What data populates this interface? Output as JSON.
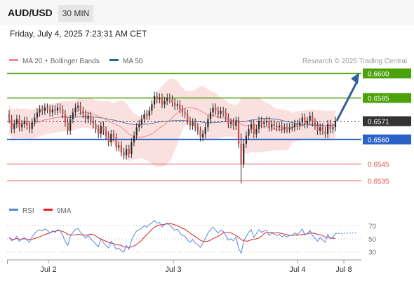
{
  "header": {
    "symbol": "AUD/USD",
    "timeframe": "30 MIN"
  },
  "datetime": "Friday, July 4, 2025 7:23:31 AM CET",
  "legend": {
    "ma20_bb": "MA 20 + Bollinger Bands",
    "ma50": "MA 50",
    "copyright": "Research © 2025 Trading Central",
    "rsi": "RSI",
    "ma9": "9MA"
  },
  "colors": {
    "resistance": "#4aa10a",
    "support_pivot": "#2a62c9",
    "support": "#e05353",
    "current": "#333333",
    "bollinger_fill": "#fbe0e0",
    "ma20": "#f08c8c",
    "ma50": "#2f5f9e",
    "candle": "#2b2b2b",
    "candle_down": "#c94b4b",
    "rsi": "#5b86e0",
    "rsi_ma": "#e02020",
    "arrow": "#2f5f9e"
  },
  "chart_data": {
    "type": "candlestick",
    "y_range": [
      0.6525,
      0.6605
    ],
    "x_ticks": [
      "Jul 2",
      "Jul 3",
      "Jul 4",
      "Jul 8"
    ],
    "levels": [
      {
        "value": 0.66,
        "label": "0.6600",
        "kind": "resistance"
      },
      {
        "value": 0.6585,
        "label": "0.6585",
        "kind": "resistance"
      },
      {
        "value": 0.6571,
        "label": "0.6571",
        "kind": "current"
      },
      {
        "value": 0.656,
        "label": "0.6560",
        "kind": "support_pivot"
      },
      {
        "value": 0.6545,
        "label": "0.6545",
        "kind": "support"
      },
      {
        "value": 0.6535,
        "label": "0.6535",
        "kind": "support"
      }
    ],
    "rsi_ticks": [
      "70",
      "50",
      "30"
    ],
    "rsi_range": [
      20,
      80
    ],
    "closes": [
      0.6572,
      0.6566,
      0.6569,
      0.6572,
      0.6567,
      0.6569,
      0.6571,
      0.6568,
      0.6566,
      0.657,
      0.6573,
      0.6576,
      0.6578,
      0.6577,
      0.6579,
      0.6578,
      0.6576,
      0.6578,
      0.6577,
      0.6579,
      0.6578,
      0.6575,
      0.657,
      0.6565,
      0.6572,
      0.6576,
      0.6579,
      0.658,
      0.6577,
      0.6575,
      0.6572,
      0.6574,
      0.6571,
      0.6569,
      0.6566,
      0.6563,
      0.6568,
      0.6565,
      0.6562,
      0.6558,
      0.6563,
      0.6561,
      0.6555,
      0.6556,
      0.6552,
      0.655,
      0.6554,
      0.6551,
      0.6558,
      0.6562,
      0.6567,
      0.6569,
      0.6572,
      0.6575,
      0.6574,
      0.6577,
      0.6581,
      0.6586,
      0.6584,
      0.6585,
      0.6581,
      0.6583,
      0.6585,
      0.6584,
      0.6582,
      0.658,
      0.6581,
      0.6578,
      0.6576,
      0.6575,
      0.6571,
      0.6568,
      0.657,
      0.6567,
      0.6565,
      0.6561,
      0.6563,
      0.6567,
      0.6572,
      0.6576,
      0.6579,
      0.6577,
      0.6575,
      0.6577,
      0.6576,
      0.6573,
      0.6569,
      0.657,
      0.6568,
      0.6571,
      0.6557,
      0.6545,
      0.6557,
      0.6562,
      0.6566,
      0.6569,
      0.6563,
      0.6566,
      0.6571,
      0.6569,
      0.657,
      0.6571,
      0.6567,
      0.6569,
      0.6568,
      0.6567,
      0.6568,
      0.6566,
      0.6567,
      0.6566,
      0.6567,
      0.6567,
      0.6569,
      0.6568,
      0.657,
      0.6573,
      0.6569,
      0.6571,
      0.6574,
      0.657,
      0.6568,
      0.6565,
      0.6567,
      0.6565,
      0.6563,
      0.6569,
      0.6566,
      0.6567,
      0.6571
    ],
    "rsi": [
      52,
      47,
      49,
      54,
      46,
      50,
      52,
      48,
      45,
      53,
      58,
      62,
      64,
      62,
      65,
      63,
      59,
      62,
      60,
      64,
      62,
      56,
      46,
      40,
      54,
      60,
      64,
      66,
      60,
      56,
      51,
      55,
      50,
      46,
      42,
      38,
      50,
      44,
      40,
      36,
      46,
      42,
      34,
      36,
      32,
      30,
      40,
      34,
      48,
      56,
      62,
      64,
      66,
      70,
      68,
      72,
      74,
      78,
      74,
      75,
      68,
      72,
      74,
      71,
      67,
      63,
      65,
      59,
      55,
      54,
      48,
      45,
      49,
      44,
      41,
      37,
      43,
      51,
      59,
      64,
      68,
      63,
      59,
      63,
      61,
      55,
      48,
      50,
      47,
      53,
      36,
      28,
      46,
      54,
      60,
      64,
      52,
      58,
      64,
      60,
      62,
      63,
      55,
      59,
      57,
      55,
      57,
      53,
      55,
      53,
      55,
      55,
      59,
      57,
      60,
      65,
      56,
      58,
      63,
      55,
      51,
      46,
      52,
      48,
      45,
      57,
      50,
      52,
      58
    ]
  }
}
